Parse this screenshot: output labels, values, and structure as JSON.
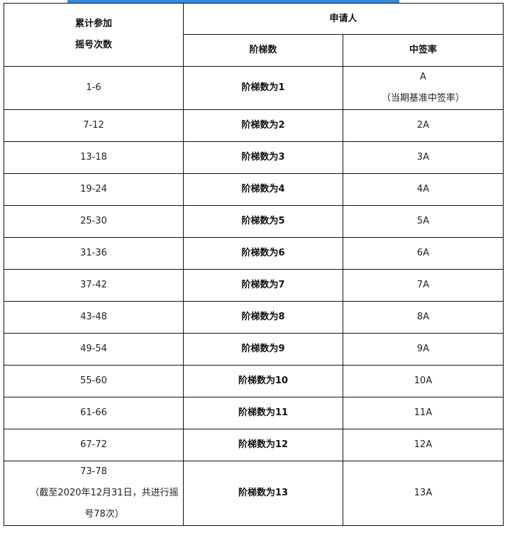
{
  "accent_color": "#2e8bef",
  "header": {
    "col1_line1": "累计参加",
    "col1_line2": "摇号次数",
    "group": "申请人",
    "col2": "阶梯数",
    "col3": "中签率"
  },
  "rows": [
    {
      "count": "1-6",
      "tier": "阶梯数为1",
      "rate": "A",
      "rate_note": "（当期基准中签率）"
    },
    {
      "count": "7-12",
      "tier": "阶梯数为2",
      "rate": "2A"
    },
    {
      "count": "13-18",
      "tier": "阶梯数为3",
      "rate": "3A"
    },
    {
      "count": "19-24",
      "tier": "阶梯数为4",
      "rate": "4A"
    },
    {
      "count": "25-30",
      "tier": "阶梯数为5",
      "rate": "5A"
    },
    {
      "count": "31-36",
      "tier": "阶梯数为6",
      "rate": "6A"
    },
    {
      "count": "37-42",
      "tier": "阶梯数为7",
      "rate": "7A"
    },
    {
      "count": "43-48",
      "tier": "阶梯数为8",
      "rate": "8A"
    },
    {
      "count": "49-54",
      "tier": "阶梯数为9",
      "rate": "9A"
    },
    {
      "count": "55-60",
      "tier": "阶梯数为10",
      "rate": "10A"
    },
    {
      "count": "61-66",
      "tier": "阶梯数为11",
      "rate": "11A"
    },
    {
      "count": "67-72",
      "tier": "阶梯数为12",
      "rate": "12A"
    },
    {
      "count": "73-78",
      "count_note": "（截至2020年12月31日，共进行摇号78次）",
      "tier": "阶梯数为13",
      "rate": "13A"
    }
  ]
}
